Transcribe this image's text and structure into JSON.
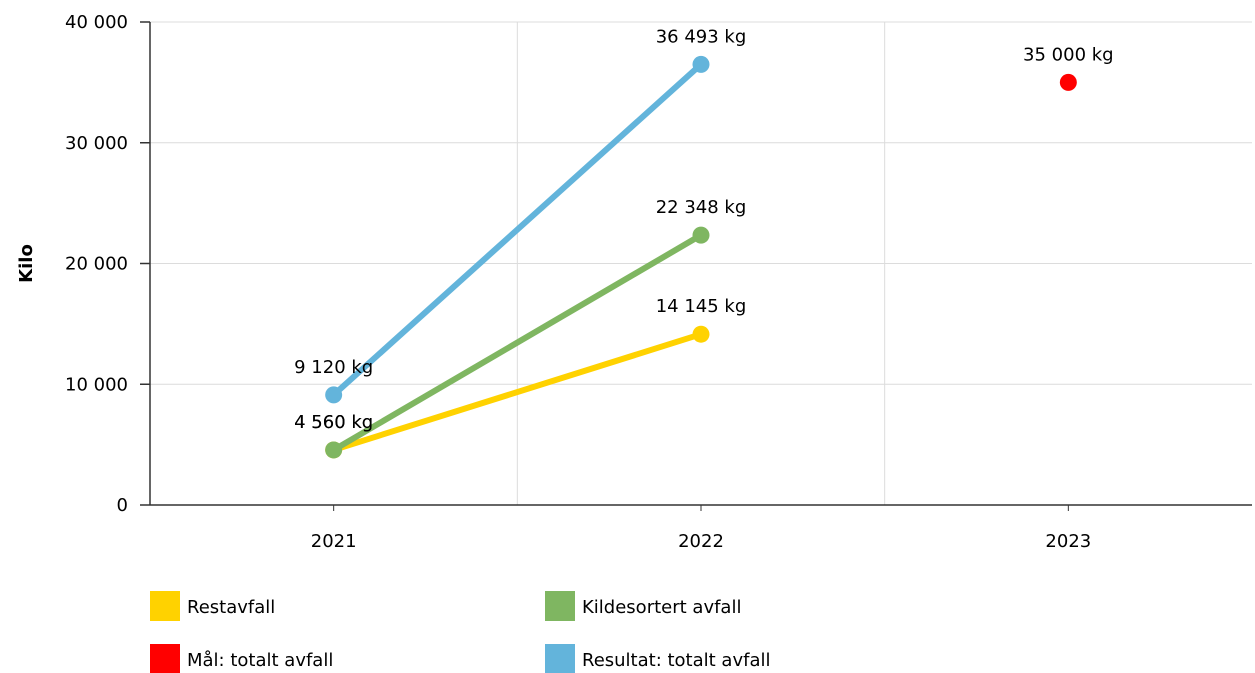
{
  "chart_data": {
    "type": "line",
    "categories": [
      "2021",
      "2022",
      "2023"
    ],
    "ylabel": "Kilo",
    "xlabel": "",
    "ylim": [
      0,
      40000
    ],
    "yticks": [
      0,
      10000,
      20000,
      30000,
      40000
    ],
    "ytick_labels": [
      "0",
      "10 000",
      "20 000",
      "30 000",
      "40 000"
    ],
    "grid": true,
    "legend_position": "bottom",
    "series": [
      {
        "name": "Restavfall",
        "color": "#FFD200",
        "values": [
          4560,
          14145,
          null
        ],
        "labels": [
          "4 560 kg",
          "14 145 kg",
          null
        ]
      },
      {
        "name": "Kildesortert avfall",
        "color": "#7FB661",
        "values": [
          4560,
          22348,
          null
        ],
        "labels": [
          "4 560 kg",
          "22 348 kg",
          null
        ]
      },
      {
        "name": "Resultat: totalt avfall",
        "color": "#63B4DB",
        "values": [
          9120,
          36493,
          null
        ],
        "labels": [
          "9 120 kg",
          "36 493 kg",
          null
        ]
      },
      {
        "name": "Mål: totalt avfall",
        "color": "#FF0000",
        "values": [
          null,
          null,
          35000
        ],
        "labels": [
          null,
          null,
          "35 000 kg"
        ]
      }
    ],
    "legend": [
      {
        "name": "Restavfall",
        "color": "#FFD200"
      },
      {
        "name": "Kildesortert avfall",
        "color": "#7FB661"
      },
      {
        "name": "Mål: totalt avfall",
        "color": "#FF0000"
      },
      {
        "name": "Resultat: totalt avfall",
        "color": "#63B4DB"
      }
    ]
  }
}
